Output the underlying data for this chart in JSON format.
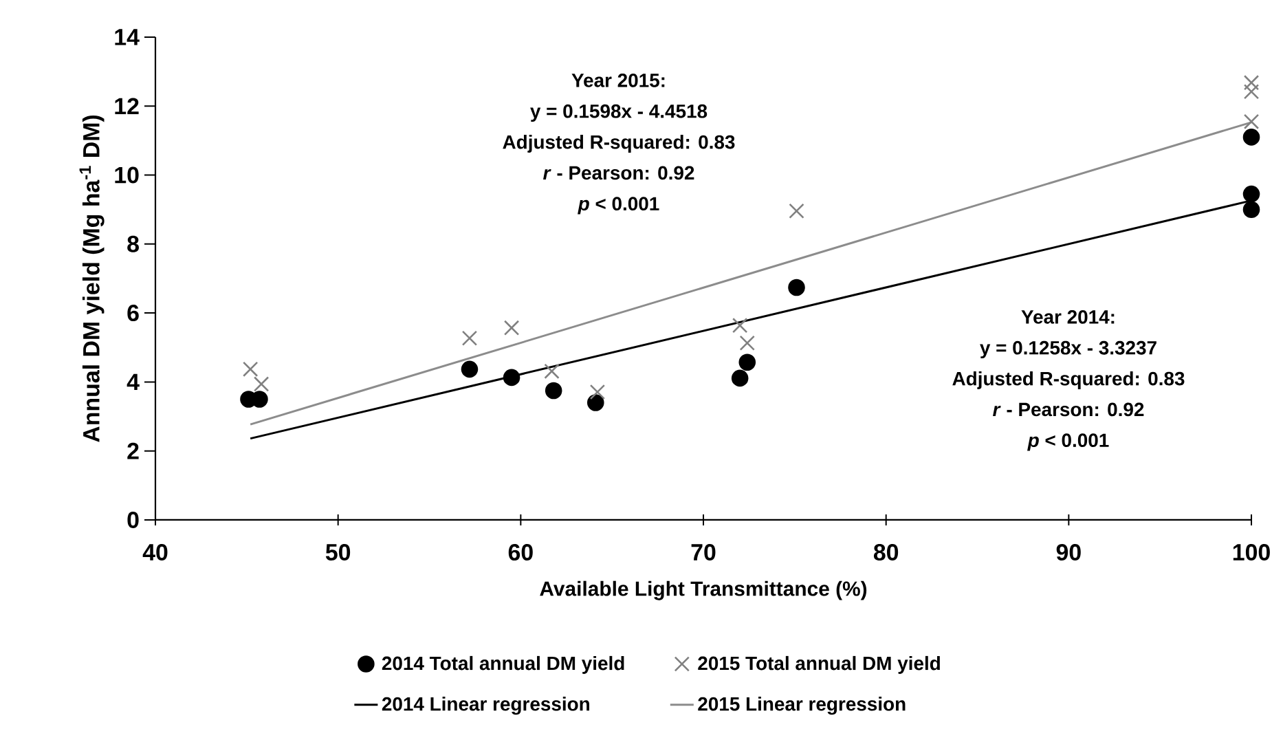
{
  "chart_data": {
    "type": "scatter",
    "xlabel": "Available Light Transmittance (%)",
    "ylabel": "Annual DM yield (Mg ha$^{-1}$ DM)",
    "xlim": [
      40,
      100
    ],
    "xticks": [
      40,
      50,
      60,
      70,
      80,
      90,
      100
    ],
    "ylim": [
      0,
      14
    ],
    "yticks": [
      0,
      2,
      4,
      6,
      8,
      10,
      12,
      14
    ],
    "legend": "bottom",
    "series": [
      {
        "name": "2014 Total annual DM yield",
        "type": "scatter",
        "marker": "circle",
        "color": "#000000",
        "x": [
          45.1,
          45.7,
          57.2,
          59.5,
          61.8,
          64.1,
          72.0,
          72.4,
          75.1,
          100,
          100,
          100
        ],
        "values": [
          3.5,
          3.5,
          4.37,
          4.13,
          3.75,
          3.4,
          4.11,
          4.57,
          6.74,
          11.1,
          9.45,
          9.0
        ]
      },
      {
        "name": "2015 Total annual DM yield",
        "type": "scatter",
        "marker": "cross",
        "color": "#808080",
        "x": [
          45.2,
          45.8,
          57.2,
          59.5,
          61.7,
          64.2,
          72.0,
          72.4,
          75.1,
          100,
          100,
          100
        ],
        "values": [
          4.37,
          3.94,
          5.27,
          5.57,
          4.31,
          3.71,
          5.64,
          5.13,
          8.96,
          12.68,
          12.42,
          11.55
        ]
      },
      {
        "name": "2014 Linear regression",
        "type": "line",
        "marker": "none",
        "line_style": "solid",
        "color": "#000000",
        "x": [
          45.2,
          100
        ],
        "values": [
          2.36,
          9.26
        ]
      },
      {
        "name": "2015 Linear regression",
        "type": "line",
        "marker": "none",
        "line_style": "solid",
        "color": "#8c8c8c",
        "x": [
          45.2,
          100
        ],
        "values": [
          2.77,
          11.53
        ]
      }
    ],
    "annotations": [
      "Year 2015:",
      "y = 0.1598x - 4.4518",
      "Adjusted R-squared:  0.83",
      "*r* - Pearson: 0.92",
      "*p* < 0.001",
      "Year 2014:",
      "y = 0.1258x - 3.3237",
      "Adjusted R-squared:  0.83",
      "*r* - Pearson: 0.92",
      "*p* < 0.001"
    ]
  }
}
